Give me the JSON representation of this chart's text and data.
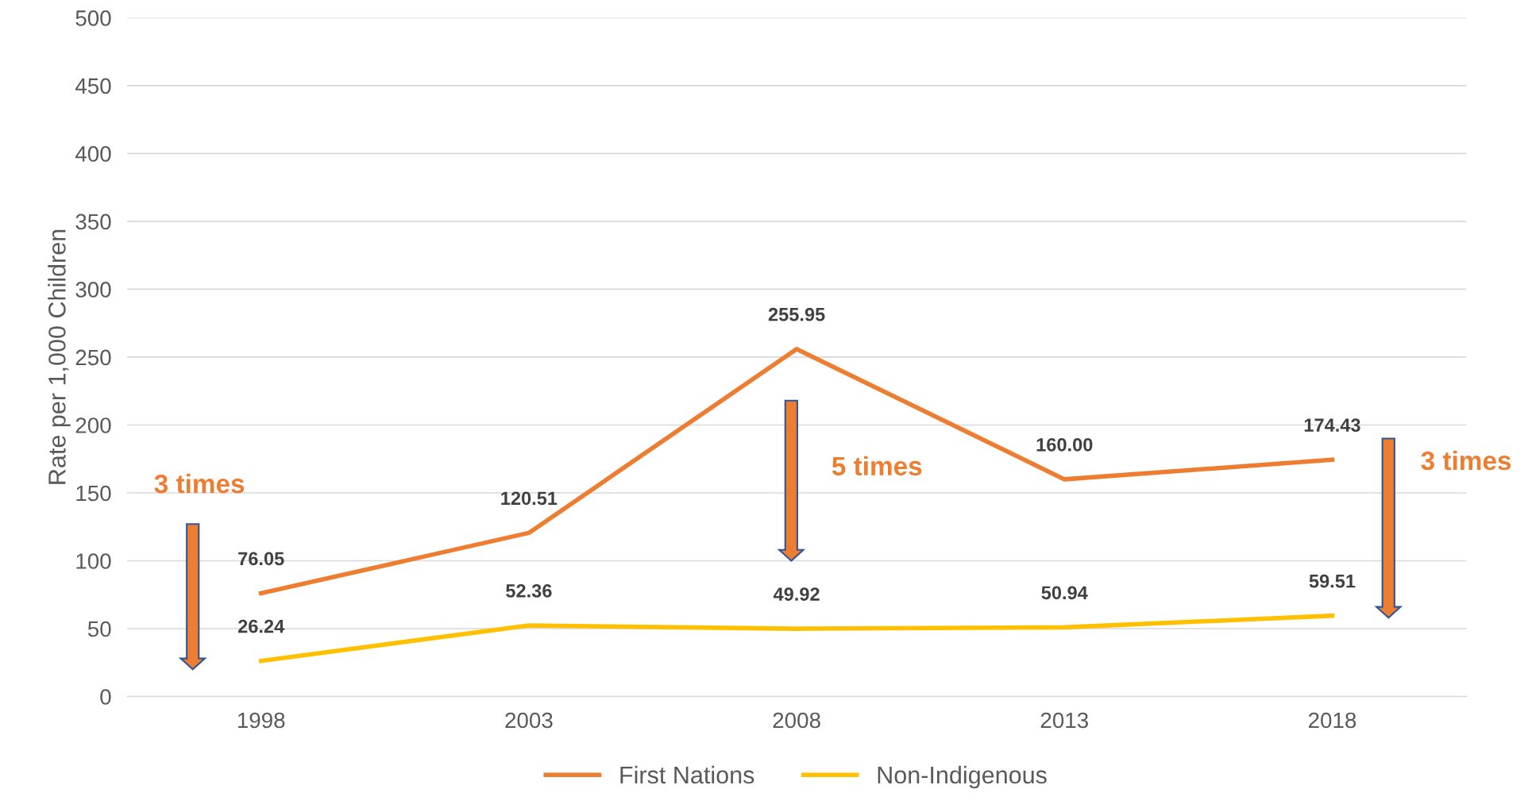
{
  "chart_data": {
    "type": "line",
    "ylabel": "Rate per 1,000 Children",
    "categories": [
      "1998",
      "2003",
      "2008",
      "2013",
      "2018"
    ],
    "series": [
      {
        "name": "First Nations",
        "color": "#ed7d31",
        "values": [
          76.05,
          120.51,
          255.95,
          160.0,
          174.43
        ]
      },
      {
        "name": "Non-Indigenous",
        "color": "#ffc000",
        "values": [
          26.24,
          52.36,
          49.92,
          50.94,
          59.51
        ]
      }
    ],
    "value_labels": [
      [
        "76.05",
        "120.51",
        "255.95",
        "160.00",
        "174.43"
      ],
      [
        "26.24",
        "52.36",
        "49.92",
        "50.94",
        "59.51"
      ]
    ],
    "ylim": [
      0,
      500
    ],
    "yticks": [
      0,
      50,
      100,
      150,
      200,
      250,
      300,
      350,
      400,
      450,
      500
    ],
    "grid": "y",
    "legend": "bottom",
    "marker": "none",
    "line_style": "solid",
    "annotations": [
      "3 times",
      "5 times",
      "3 times"
    ]
  }
}
